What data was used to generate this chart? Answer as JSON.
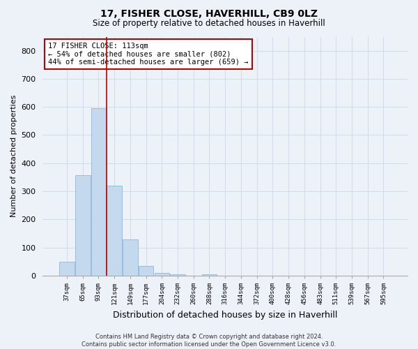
{
  "title": "17, FISHER CLOSE, HAVERHILL, CB9 0LZ",
  "subtitle": "Size of property relative to detached houses in Haverhill",
  "xlabel": "Distribution of detached houses by size in Haverhill",
  "ylabel": "Number of detached properties",
  "bar_labels": [
    "37sqm",
    "65sqm",
    "93sqm",
    "121sqm",
    "149sqm",
    "177sqm",
    "204sqm",
    "232sqm",
    "260sqm",
    "288sqm",
    "316sqm",
    "344sqm",
    "372sqm",
    "400sqm",
    "428sqm",
    "456sqm",
    "483sqm",
    "511sqm",
    "539sqm",
    "567sqm",
    "595sqm"
  ],
  "bar_values": [
    50,
    358,
    595,
    320,
    130,
    35,
    10,
    5,
    0,
    5,
    0,
    0,
    0,
    0,
    0,
    0,
    0,
    0,
    0,
    0,
    0
  ],
  "bar_color": "#c5d9ee",
  "bar_edge_color": "#7aaed6",
  "grid_color": "#d0dcea",
  "bg_color": "#edf2f9",
  "property_line_x": 2.5,
  "property_line_color": "#bb0000",
  "annotation_text": "17 FISHER CLOSE: 113sqm\n← 54% of detached houses are smaller (802)\n44% of semi-detached houses are larger (659) →",
  "annotation_box_facecolor": "#ffffff",
  "annotation_box_edgecolor": "#bb0000",
  "ylim": [
    0,
    850
  ],
  "yticks": [
    0,
    100,
    200,
    300,
    400,
    500,
    600,
    700,
    800
  ],
  "footnote_line1": "Contains HM Land Registry data © Crown copyright and database right 2024.",
  "footnote_line2": "Contains public sector information licensed under the Open Government Licence v3.0."
}
